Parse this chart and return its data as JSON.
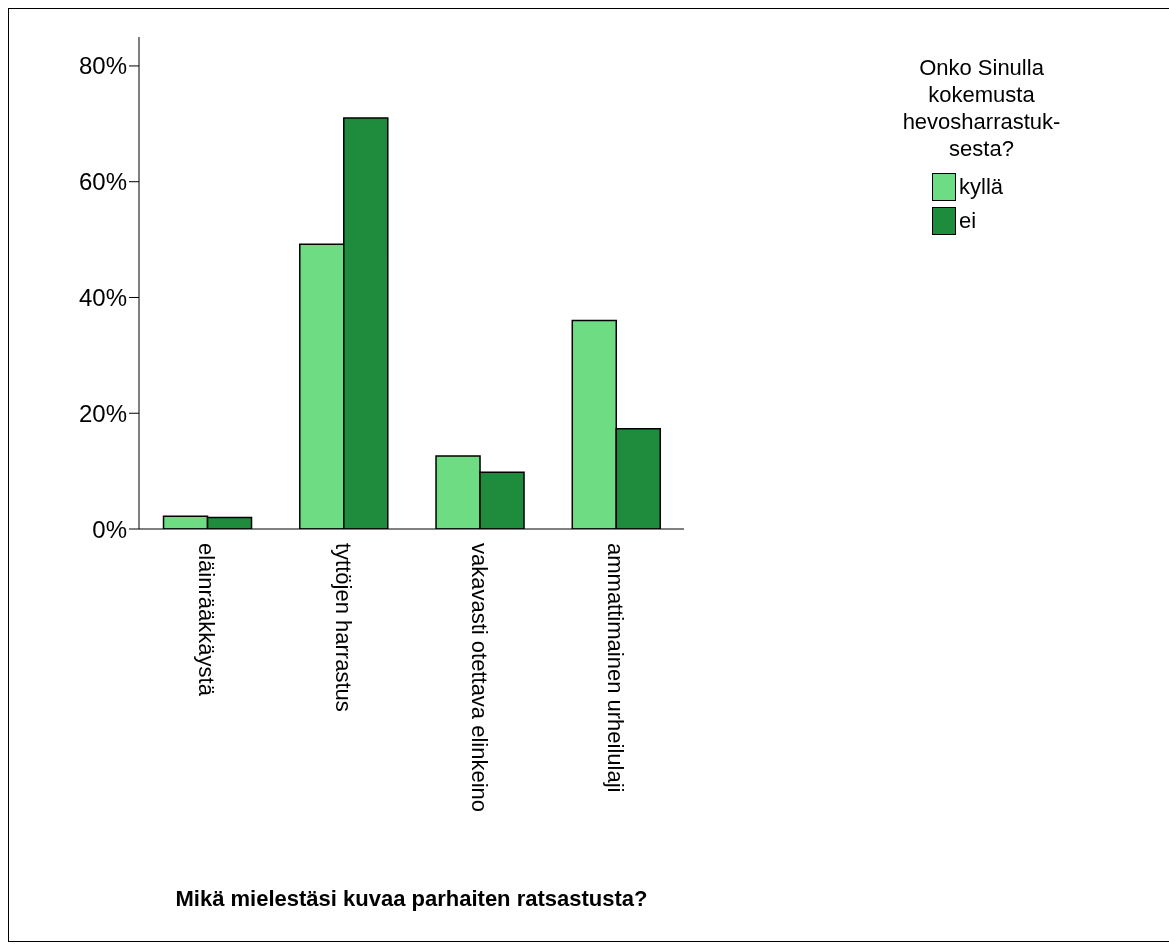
{
  "chart_data": {
    "type": "bar",
    "xlabel": "Mikä mielestäsi kuvaa parhaiten ratsastusta?",
    "legend_title": "Onko Sinulla kokemusta hevosharrastuk-sesta?",
    "categories": [
      "eläinrääkkäystä",
      "tyttöjen harrastus",
      "vakavasti otettava elinkeino",
      "ammattimainen urheilulaji"
    ],
    "series": [
      {
        "name": "kyllä",
        "color": "#6ddc82",
        "values": [
          2.2,
          49.2,
          12.6,
          36.0
        ]
      },
      {
        "name": "ei",
        "color": "#1e8c3c",
        "values": [
          2.0,
          71.0,
          9.8,
          17.3
        ]
      }
    ],
    "ylim": [
      0,
      85
    ],
    "yticks": [
      {
        "value": 0,
        "label": "0%"
      },
      {
        "value": 20,
        "label": "20%"
      },
      {
        "value": 40,
        "label": "40%"
      },
      {
        "value": 60,
        "label": "60%"
      },
      {
        "value": 80,
        "label": "80%"
      }
    ],
    "grid": false,
    "legend": "top right"
  }
}
